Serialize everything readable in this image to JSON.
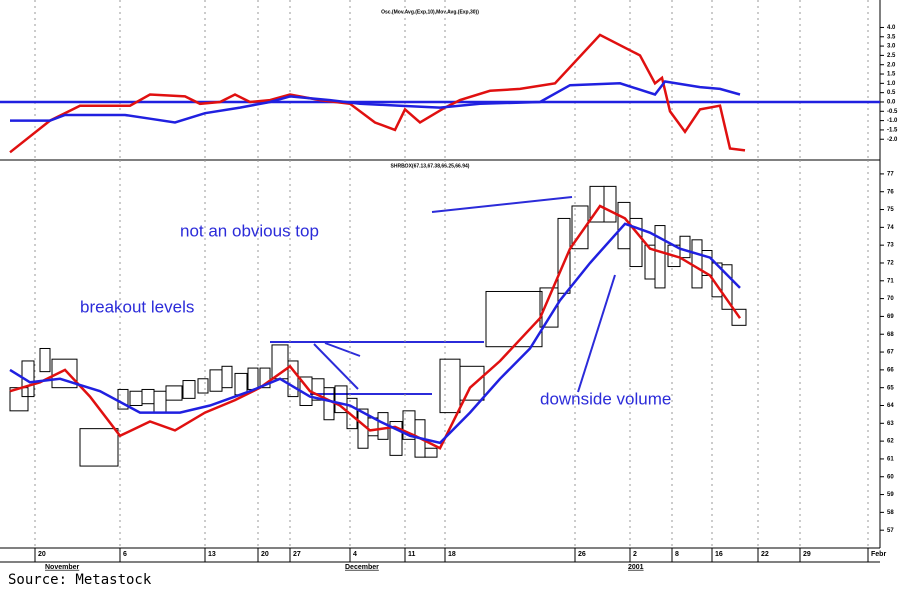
{
  "chart_data": [
    {
      "type": "line",
      "title": "Osc.(Mov.Avg.(Exp,10),Mov.Avg.(Exp,30))",
      "ylim": [
        -2.9,
        4.4
      ],
      "yticks": [
        {
          "value": 4,
          "label": "4.0"
        },
        3.5,
        {
          "value": 3,
          "label": "3.0"
        },
        2.5,
        {
          "value": 2,
          "label": "2.0"
        },
        1.5,
        {
          "value": 1,
          "label": "1.0"
        },
        0.5,
        {
          "value": 0,
          "label": "0.0"
        },
        -0.5,
        {
          "value": -1,
          "label": "-1.0"
        },
        -1.5,
        {
          "value": -2,
          "label": "-2.0"
        }
      ],
      "hline": 0,
      "hline_color": "#2020e0",
      "series": [
        {
          "color": "#e01010",
          "x": [
            10,
            50,
            80,
            130,
            150,
            185,
            200,
            220,
            235,
            250,
            270,
            290,
            320,
            350,
            375,
            395,
            405,
            420,
            445,
            460,
            490,
            520,
            555,
            600,
            640,
            655,
            662,
            670,
            685,
            700,
            720,
            730,
            745
          ],
          "values": [
            -2.7,
            -1.0,
            -0.2,
            -0.2,
            0.4,
            0.3,
            -0.1,
            0.0,
            0.4,
            0.0,
            0.1,
            0.4,
            0.1,
            -0.1,
            -1.1,
            -1.5,
            -0.4,
            -1.1,
            -0.3,
            0.1,
            0.6,
            0.7,
            1.0,
            3.6,
            2.5,
            1.0,
            1.3,
            -0.5,
            -1.6,
            -0.4,
            -0.2,
            -2.5,
            -2.6
          ]
        },
        {
          "color": "#2020e0",
          "x": [
            10,
            50,
            65,
            125,
            150,
            175,
            205,
            240,
            270,
            290,
            330,
            360,
            400,
            440,
            480,
            540,
            570,
            620,
            655,
            665,
            700,
            720,
            740
          ],
          "values": [
            -1.0,
            -1.0,
            -0.7,
            -0.7,
            -0.9,
            -1.1,
            -0.6,
            -0.3,
            0.0,
            0.3,
            0.1,
            -0.1,
            -0.2,
            -0.3,
            -0.1,
            0.0,
            0.9,
            1.0,
            0.4,
            1.1,
            0.8,
            0.7,
            0.4
          ]
        }
      ]
    },
    {
      "type": "equivolume",
      "title": "SHRBOX(67.13,67.38,66.25,66.94)",
      "xlim": [
        10,
        880
      ],
      "ylim": [
        56,
        77.5
      ],
      "yticks": [
        77,
        76,
        75,
        74,
        73,
        72,
        71,
        70,
        69,
        68,
        67,
        66,
        65,
        64,
        63,
        62,
        61,
        60,
        59,
        58,
        57
      ],
      "xticks": [
        {
          "value": 35,
          "label": "20"
        },
        {
          "value": 120,
          "label": "6"
        },
        {
          "value": 205,
          "label": "13"
        },
        {
          "value": 258,
          "label": "20"
        },
        {
          "value": 290,
          "label": "27"
        },
        {
          "value": 350,
          "label": "4"
        },
        {
          "value": 405,
          "label": "11"
        },
        {
          "value": 445,
          "label": "18"
        },
        {
          "value": 575,
          "label": "26"
        },
        {
          "value": 630,
          "label": "2"
        },
        {
          "value": 672,
          "label": "8"
        },
        {
          "value": 712,
          "label": "16"
        },
        {
          "value": 758,
          "label": "22"
        },
        {
          "value": 800,
          "label": "29"
        },
        {
          "value": 868,
          "label": "Febr"
        }
      ],
      "period_labels": [
        {
          "value": 45,
          "label": "November"
        },
        {
          "value": 345,
          "label": "December"
        },
        {
          "value": 628,
          "label": "2001"
        }
      ],
      "grid": true,
      "boxes": {
        "x": [
          10,
          22,
          40,
          52,
          80,
          118,
          130,
          142,
          154,
          166,
          183,
          198,
          210,
          222,
          235,
          248,
          260,
          272,
          288,
          300,
          312,
          324,
          335,
          347,
          358,
          368,
          378,
          390,
          403,
          415,
          425,
          440,
          460,
          486,
          540,
          558,
          572,
          590,
          604,
          618,
          630,
          645,
          655,
          668,
          680,
          692,
          702,
          712,
          722,
          732
        ],
        "volume": [
          18,
          12,
          10,
          25,
          38,
          10,
          12,
          12,
          12,
          16,
          12,
          10,
          12,
          10,
          12,
          10,
          10,
          16,
          10,
          12,
          12,
          10,
          12,
          10,
          10,
          10,
          10,
          12,
          12,
          10,
          12,
          20,
          24,
          56,
          18,
          12,
          16,
          14,
          12,
          12,
          12,
          10,
          10,
          12,
          10,
          10,
          10,
          10,
          10,
          14
        ],
        "high": [
          65.0,
          66.5,
          67.2,
          66.6,
          62.7,
          64.9,
          64.8,
          64.9,
          64.8,
          65.1,
          65.4,
          65.5,
          66.0,
          66.2,
          65.8,
          66.1,
          66.1,
          67.4,
          66.5,
          65.6,
          65.5,
          65.0,
          65.1,
          64.4,
          63.8,
          63.3,
          63.6,
          63.1,
          63.7,
          63.2,
          61.6,
          66.6,
          66.2,
          70.4,
          70.6,
          74.5,
          75.2,
          76.3,
          76.3,
          75.4,
          74.5,
          73.0,
          74.1,
          73.0,
          73.5,
          73.3,
          72.7,
          72.0,
          71.9,
          69.4
        ],
        "low": [
          63.7,
          64.5,
          65.9,
          65.0,
          60.6,
          63.8,
          64.0,
          64.1,
          63.6,
          64.3,
          64.4,
          64.7,
          64.8,
          65.0,
          64.6,
          64.9,
          65.0,
          65.5,
          64.5,
          64.0,
          64.3,
          63.2,
          63.6,
          62.7,
          61.6,
          62.3,
          62.1,
          61.2,
          62.1,
          61.1,
          61.1,
          63.6,
          64.3,
          67.3,
          68.4,
          70.3,
          72.8,
          74.3,
          74.3,
          72.8,
          71.8,
          71.1,
          70.6,
          71.8,
          72.3,
          70.6,
          71.3,
          70.1,
          69.4,
          68.5
        ]
      },
      "series": [
        {
          "color": "#e01010",
          "x": [
            10,
            40,
            65,
            90,
            120,
            150,
            175,
            205,
            235,
            260,
            290,
            310,
            340,
            370,
            395,
            415,
            440,
            470,
            500,
            540,
            570,
            600,
            625,
            650,
            680,
            710,
            740
          ],
          "values": [
            64.8,
            65.3,
            66.0,
            64.5,
            62.3,
            63.1,
            62.6,
            63.6,
            64.3,
            65.0,
            66.2,
            64.8,
            64.0,
            62.6,
            62.8,
            62.3,
            61.6,
            65.0,
            66.5,
            68.9,
            72.8,
            75.2,
            74.5,
            72.8,
            72.3,
            71.3,
            68.9
          ]
        },
        {
          "color": "#2020e0",
          "x": [
            10,
            30,
            60,
            100,
            140,
            180,
            210,
            250,
            280,
            310,
            350,
            380,
            410,
            440,
            470,
            500,
            530,
            560,
            590,
            625,
            650,
            680,
            710,
            740
          ],
          "values": [
            66.0,
            65.3,
            65.5,
            64.8,
            63.6,
            63.6,
            64.0,
            64.8,
            65.5,
            64.5,
            64.0,
            63.1,
            62.3,
            61.9,
            63.6,
            65.5,
            67.2,
            69.9,
            72.0,
            74.2,
            73.7,
            72.8,
            72.3,
            70.6
          ]
        }
      ],
      "annotations": [
        "not an obvious top",
        "breakout levels",
        "downside volume"
      ]
    }
  ],
  "source": "Source: Metastock"
}
